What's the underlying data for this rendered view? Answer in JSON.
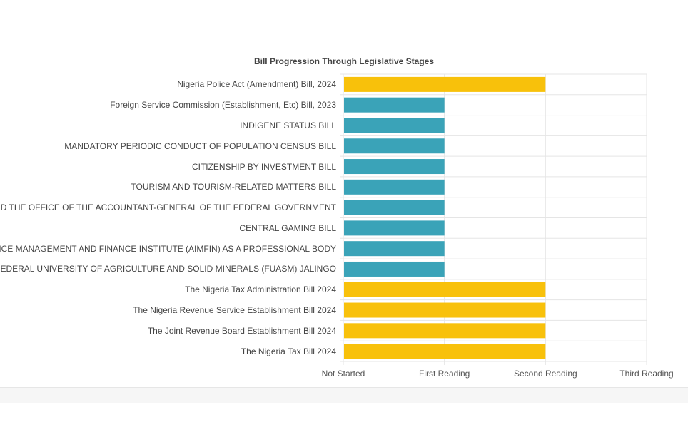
{
  "chart_data": {
    "type": "bar",
    "orientation": "horizontal",
    "title": "Bill Progression Through Legislative Stages",
    "xlabel": "",
    "ylabel": "",
    "x_ticks": [
      "Not Started",
      "First Reading",
      "Second Reading",
      "Third Reading"
    ],
    "xlim": [
      0,
      3
    ],
    "grid": true,
    "categories": [
      "Nigeria Police Act (Amendment) Bill, 2024",
      "Foreign Service Commission (Establishment, Etc) Bill, 2023",
      "INDIGENE STATUS BILL",
      "MANDATORY PERIODIC CONDUCT OF POPULATION CENSUS BILL",
      "CITIZENSHIP BY INVESTMENT BILL",
      "TOURISM AND TOURISM-RELATED MATTERS BILL",
      "N AND THE OFFICE OF THE ACCOUNTANT-GENERAL OF THE FEDERAL GOVERNMENT",
      "CENTRAL GAMING BILL",
      "GENCE MANAGEMENT AND FINANCE INSTITUTE (AIMFIN) AS A PROFESSIONAL BODY",
      "HE FEDERAL UNIVERSITY OF AGRICULTURE AND SOLID MINERALS (FUASM) JALINGO",
      "The Nigeria Tax Administration Bill 2024",
      "The Nigeria Revenue Service Establishment Bill 2024",
      "The Joint Revenue Board Establishment Bill 2024",
      "The Nigeria Tax Bill 2024"
    ],
    "values": [
      2,
      1,
      1,
      1,
      1,
      1,
      1,
      1,
      1,
      1,
      2,
      2,
      2,
      2
    ],
    "colors": {
      "first_reading": "#3aa3b8",
      "second_reading": "#f8c10b"
    }
  }
}
